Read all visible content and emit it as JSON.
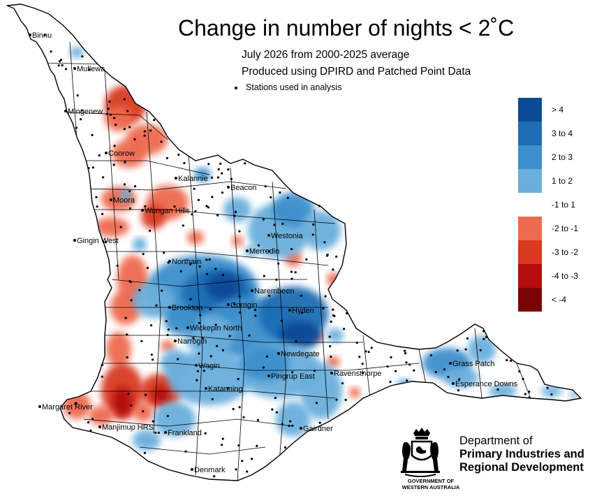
{
  "title": "Change in number of nights < 2˚C",
  "subtitle_line1": "July 2026 from 2000-2025 average",
  "subtitle_line2": "Produced using DPIRD and Patched Point Data",
  "stations_note": "Stations used in analysis",
  "legend": [
    {
      "label": "> 4",
      "color": "#0b4a96"
    },
    {
      "label": "3 to 4",
      "color": "#1f6db4"
    },
    {
      "label": "2 to 3",
      "color": "#3e8fcc"
    },
    {
      "label": "1 to 2",
      "color": "#6aaedc"
    },
    {
      "label": "-1 to 1",
      "color": "#ffffff"
    },
    {
      "label": "-2 to -1",
      "color": "#ee6a4f"
    },
    {
      "label": "-3 to -2",
      "color": "#d83a22"
    },
    {
      "label": "-4 to -3",
      "color": "#b40d0d"
    },
    {
      "label": "< -4",
      "color": "#7a0404"
    }
  ],
  "towns": [
    "Binnu",
    "Mullewa",
    "Mingenew",
    "Coorow",
    "Kalannie",
    "Beacon",
    "Moora",
    "Wongan Hills",
    "Gingin West",
    "Westonia",
    "Merredin",
    "Northam",
    "Narembeen",
    "Corrigin",
    "Brookton",
    "Hyden",
    "Wickepin North",
    "Narrogin",
    "Newdegate",
    "Wagin",
    "Ravensthorpe",
    "Pingrup East",
    "Grass Patch",
    "Esperance Downs",
    "Katanning",
    "Margaret River",
    "Manjimup HRS",
    "Frankland",
    "Gairdner",
    "Denmark"
  ],
  "department": {
    "line1": "Department of",
    "line2": "Primary Industries and",
    "line3": "Regional Development"
  },
  "government": {
    "line1": "GOVERNMENT OF",
    "line2": "WESTERN AUSTRALIA"
  }
}
